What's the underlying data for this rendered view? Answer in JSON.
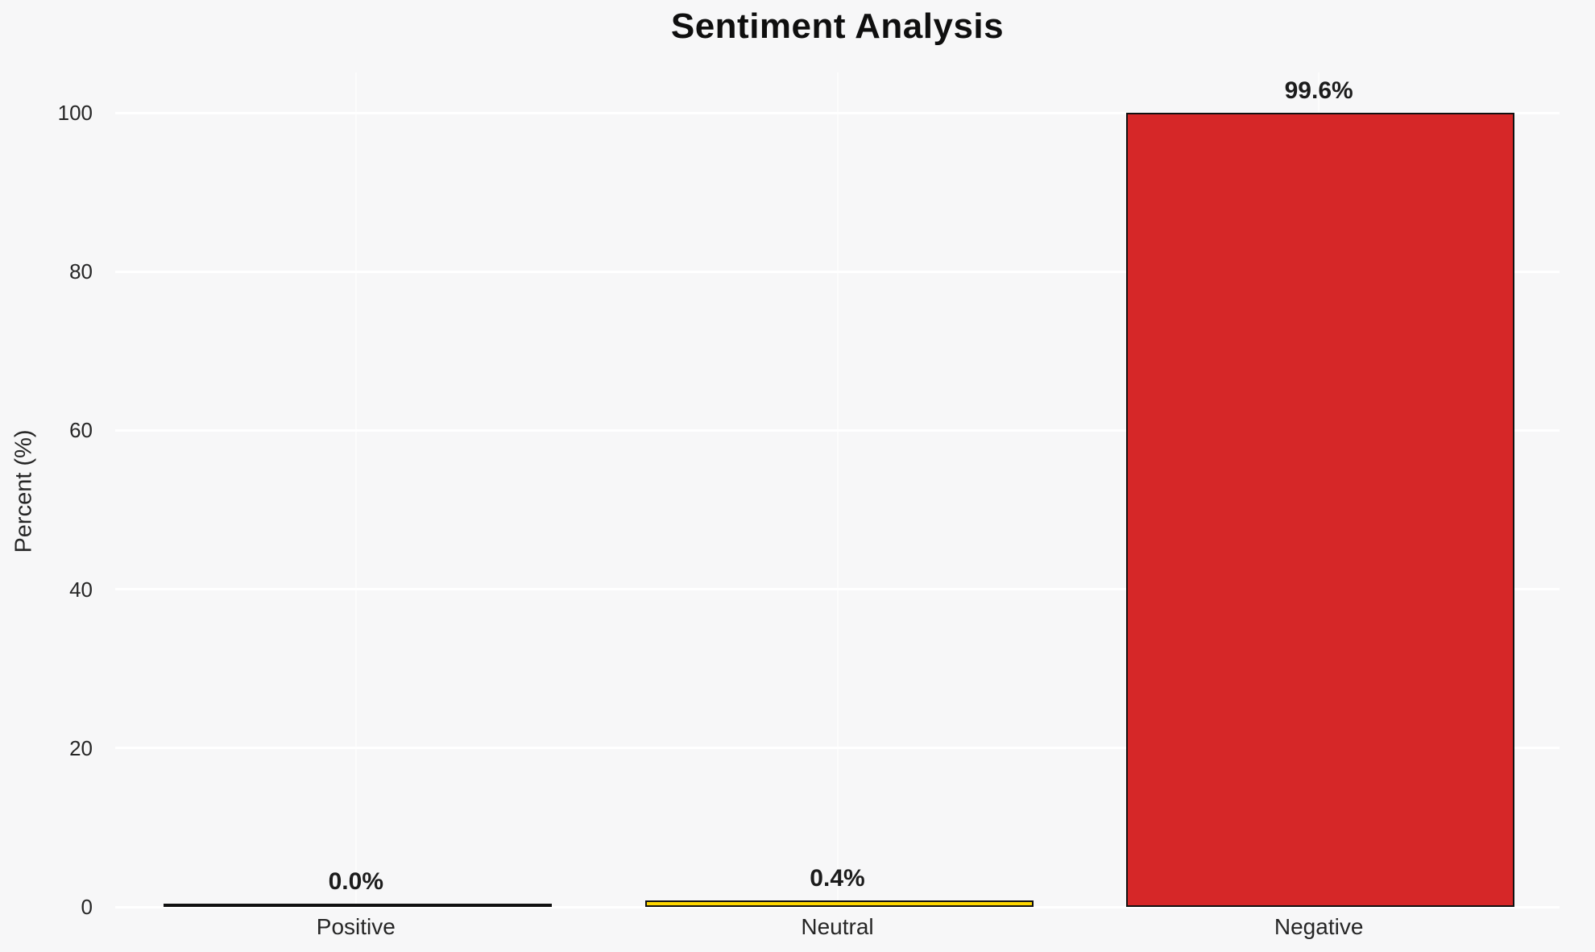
{
  "chart_data": {
    "type": "bar",
    "title": "Sentiment Analysis",
    "ylabel": "Percent (%)",
    "xlabel": "",
    "categories": [
      "Positive",
      "Neutral",
      "Negative"
    ],
    "values": [
      0.0,
      0.4,
      99.6
    ],
    "value_labels": [
      "0.0%",
      "0.4%",
      "99.6%"
    ],
    "bar_colors": [
      "#4a4a4a",
      "#ffd700",
      "#d62728"
    ],
    "bar_edge_color": "#111111",
    "ylim": [
      0,
      100
    ],
    "yticks": [
      0,
      20,
      40,
      60,
      80,
      100
    ],
    "grid": true,
    "gridline_color": "#ffffff",
    "legend": false,
    "background_color": "#f7f7f8"
  }
}
